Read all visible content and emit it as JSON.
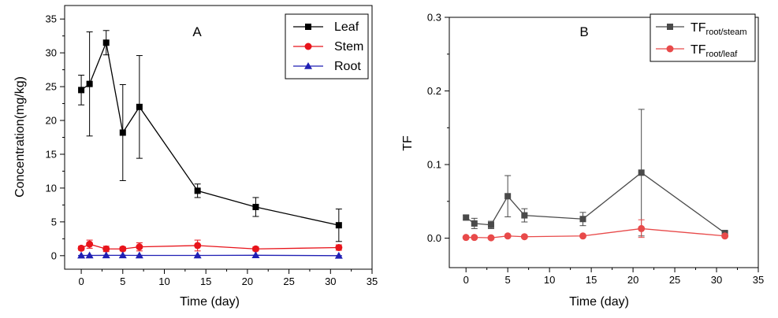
{
  "chart_data": [
    {
      "type": "line",
      "panel_label": "A",
      "xlabel": "Time (day)",
      "ylabel": "Concentration(mg/kg)",
      "xlim": [
        -2,
        35
      ],
      "ylim": [
        -2,
        37
      ],
      "xticks": [
        "0",
        "5",
        "10",
        "15",
        "20",
        "25",
        "30",
        "35"
      ],
      "yticks": [
        "0",
        "5",
        "10",
        "15",
        "20",
        "25",
        "30",
        "35"
      ],
      "legend_position": "top-right",
      "series": [
        {
          "name": "Leaf",
          "color": "#000000",
          "marker": "square",
          "x": [
            0,
            1,
            3,
            5,
            7,
            14,
            21,
            31
          ],
          "values": [
            24.5,
            25.4,
            31.5,
            18.2,
            22.0,
            9.6,
            7.2,
            4.5
          ],
          "errors": [
            2.2,
            7.7,
            1.8,
            7.1,
            7.6,
            1.0,
            1.4,
            2.4
          ]
        },
        {
          "name": "Stem",
          "color": "#e8141b",
          "marker": "circle",
          "x": [
            0,
            1,
            3,
            5,
            7,
            14,
            21,
            31
          ],
          "values": [
            1.1,
            1.7,
            1.0,
            1.0,
            1.3,
            1.5,
            1.0,
            1.2
          ],
          "errors": [
            0.3,
            0.6,
            0.4,
            0.3,
            0.6,
            0.8,
            0.3,
            0.4
          ]
        },
        {
          "name": "Root",
          "color": "#1f1fb4",
          "marker": "triangle",
          "x": [
            0,
            1,
            3,
            5,
            7,
            14,
            21,
            31
          ],
          "values": [
            0.03,
            0.04,
            0.05,
            0.05,
            0.04,
            0.04,
            0.06,
            0.0
          ],
          "errors": [
            0.02,
            0.02,
            0.02,
            0.02,
            0.02,
            0.02,
            0.02,
            0.01
          ]
        }
      ]
    },
    {
      "type": "line",
      "panel_label": "B",
      "xlabel": "Time (day)",
      "ylabel": "TF",
      "xlim": [
        -2,
        35
      ],
      "ylim": [
        -0.04,
        0.3
      ],
      "xticks": [
        "0",
        "5",
        "10",
        "15",
        "20",
        "25",
        "30",
        "35"
      ],
      "yticks": [
        "0.0",
        "0.1",
        "0.2",
        "0.3"
      ],
      "legend_position": "top-right",
      "series": [
        {
          "name": "TF",
          "name_sub": "root/steam",
          "color": "#4a4a4a",
          "marker": "square",
          "x": [
            0,
            1,
            3,
            5,
            7,
            14,
            21,
            31
          ],
          "values": [
            0.028,
            0.02,
            0.018,
            0.057,
            0.031,
            0.026,
            0.089,
            0.007
          ],
          "errors": [
            0.003,
            0.007,
            0.005,
            0.028,
            0.009,
            0.009,
            0.086,
            0.002
          ]
        },
        {
          "name": "TF",
          "name_sub": "root/leaf",
          "color": "#e84a4a",
          "marker": "circle",
          "x": [
            0,
            1,
            3,
            5,
            7,
            14,
            21,
            31
          ],
          "values": [
            0.001,
            0.001,
            0.0005,
            0.003,
            0.002,
            0.003,
            0.013,
            0.003
          ],
          "errors": [
            0.0005,
            0.0005,
            0.0003,
            0.001,
            0.001,
            0.001,
            0.012,
            0.001
          ]
        }
      ]
    }
  ]
}
